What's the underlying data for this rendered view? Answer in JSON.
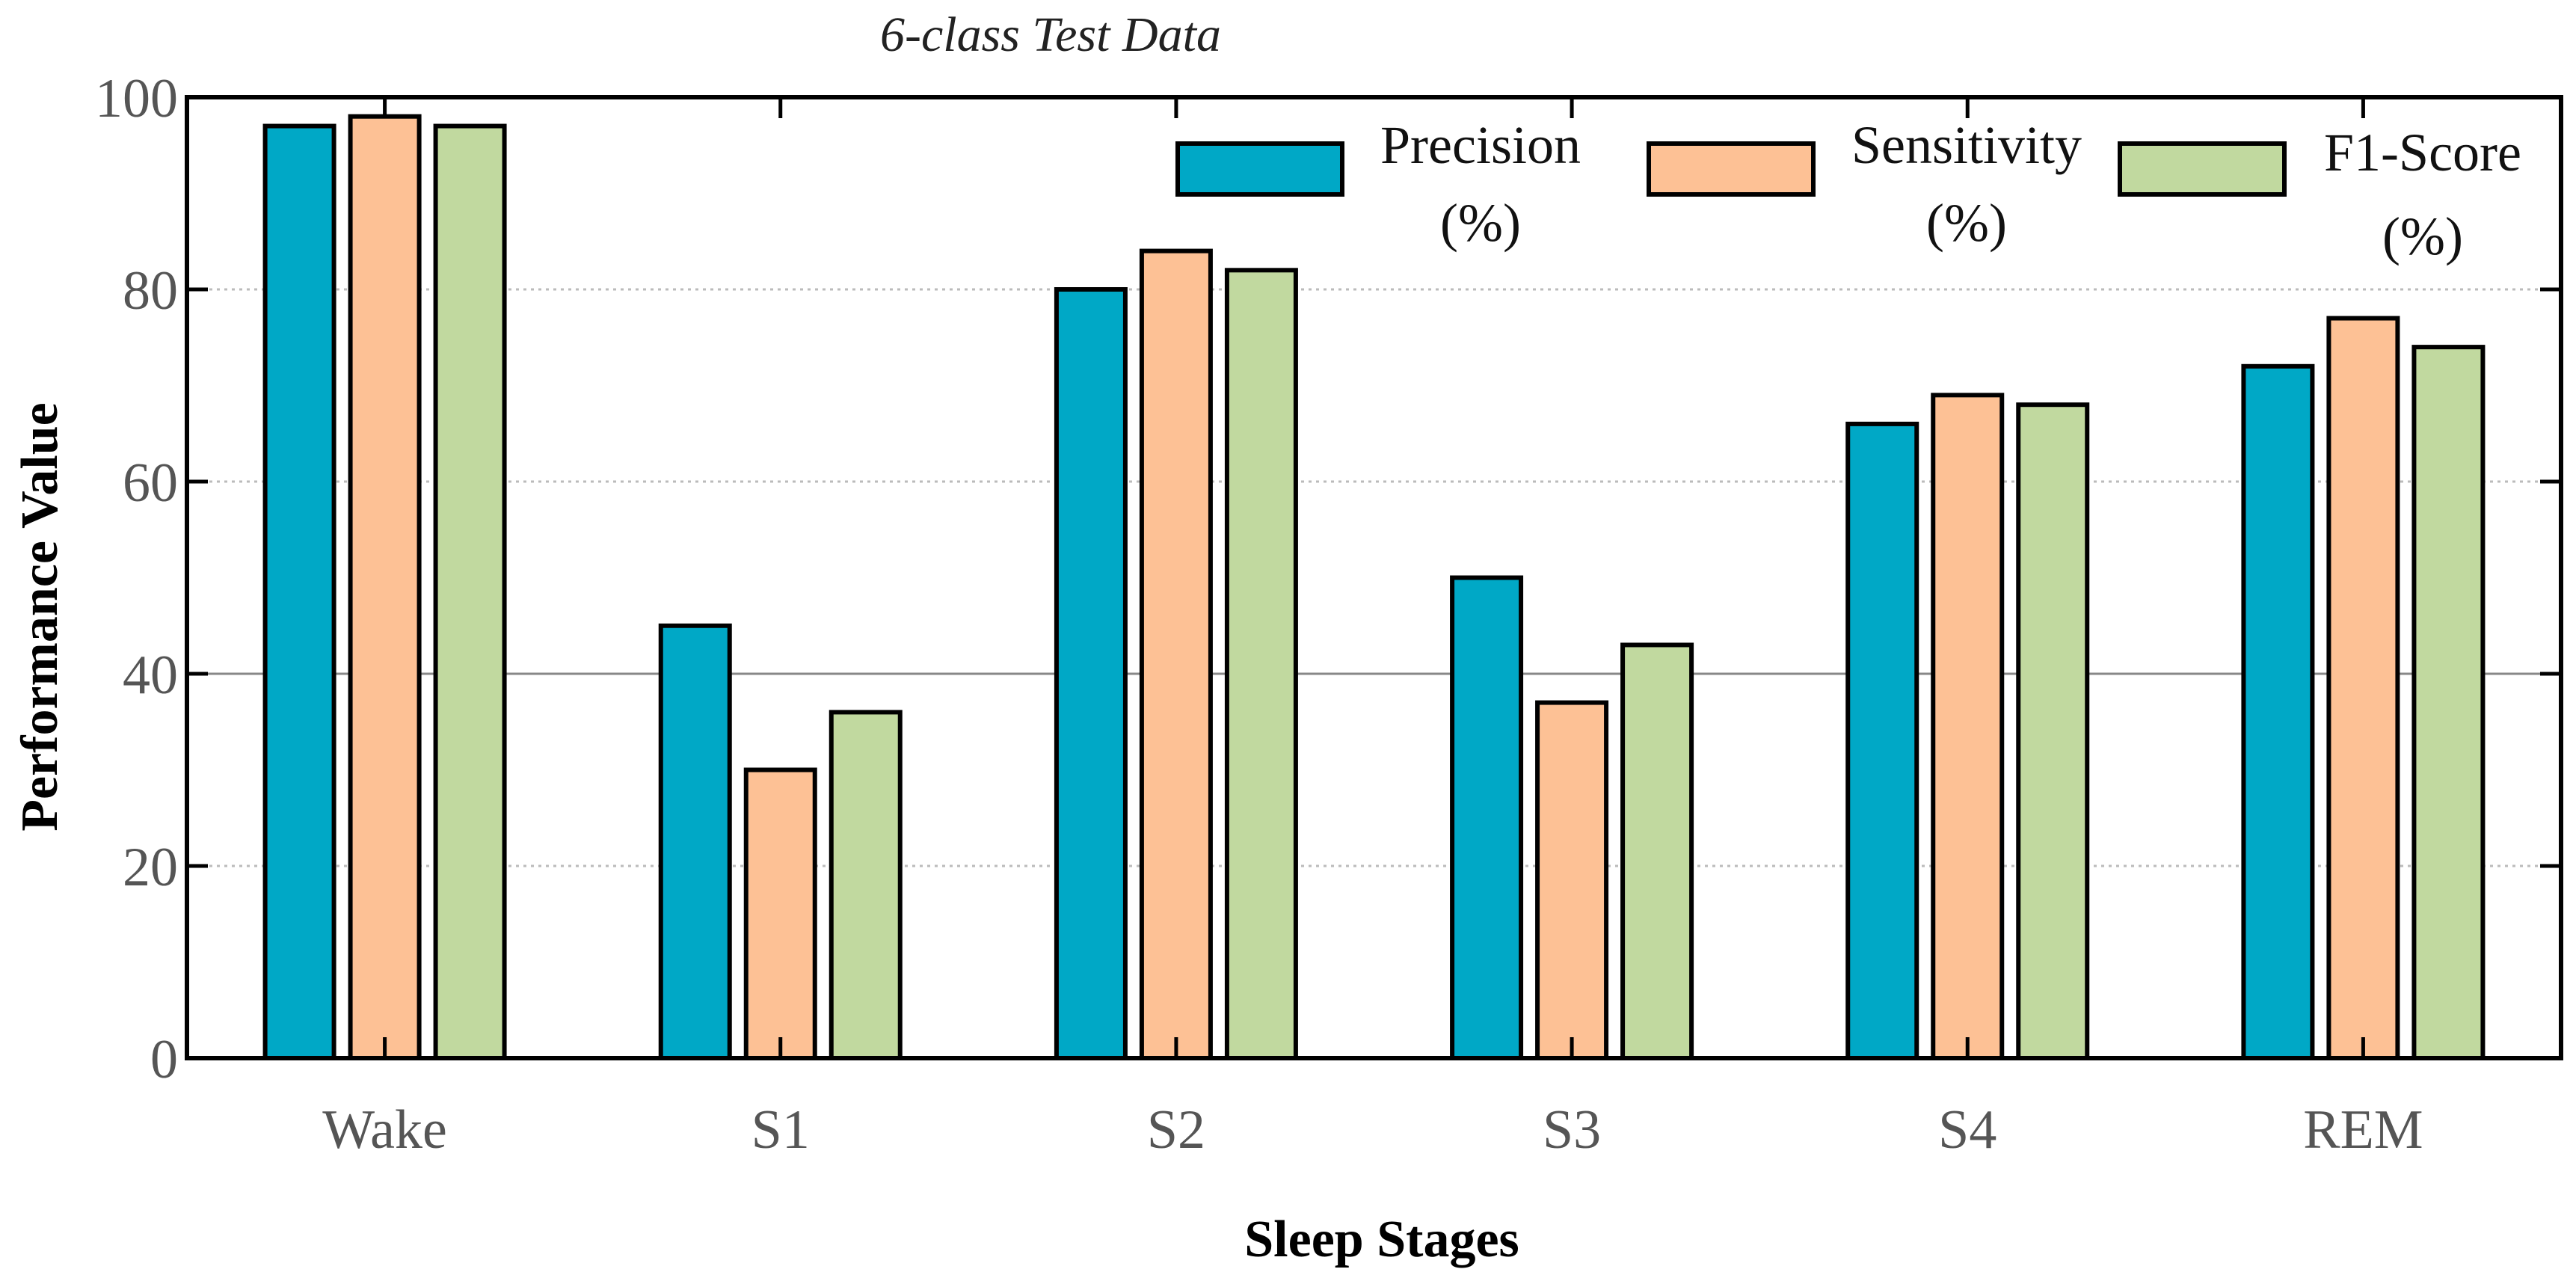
{
  "chart_data": {
    "type": "bar",
    "title": "6-class Test Data",
    "xlabel": "Sleep Stages",
    "ylabel": "Performance Value",
    "ylim": [
      0,
      100
    ],
    "yticks": [
      0,
      20,
      40,
      60,
      80,
      100
    ],
    "grid": true,
    "legend_position": "top-right",
    "categories": [
      "Wake",
      "S1",
      "S2",
      "S3",
      "S4",
      "REM"
    ],
    "series": [
      {
        "name": "Precision",
        "unit": "(%)",
        "color": "#00a8c6",
        "values": [
          97,
          45,
          80,
          50,
          66,
          72
        ]
      },
      {
        "name": "Sensitivity",
        "unit": "(%)",
        "color": "#fdc195",
        "values": [
          98,
          30,
          84,
          37,
          69,
          77
        ]
      },
      {
        "name": "F1-Score",
        "unit": "(%)",
        "color": "#c1d99f",
        "values": [
          97,
          36,
          82,
          43,
          68,
          74
        ]
      }
    ]
  }
}
